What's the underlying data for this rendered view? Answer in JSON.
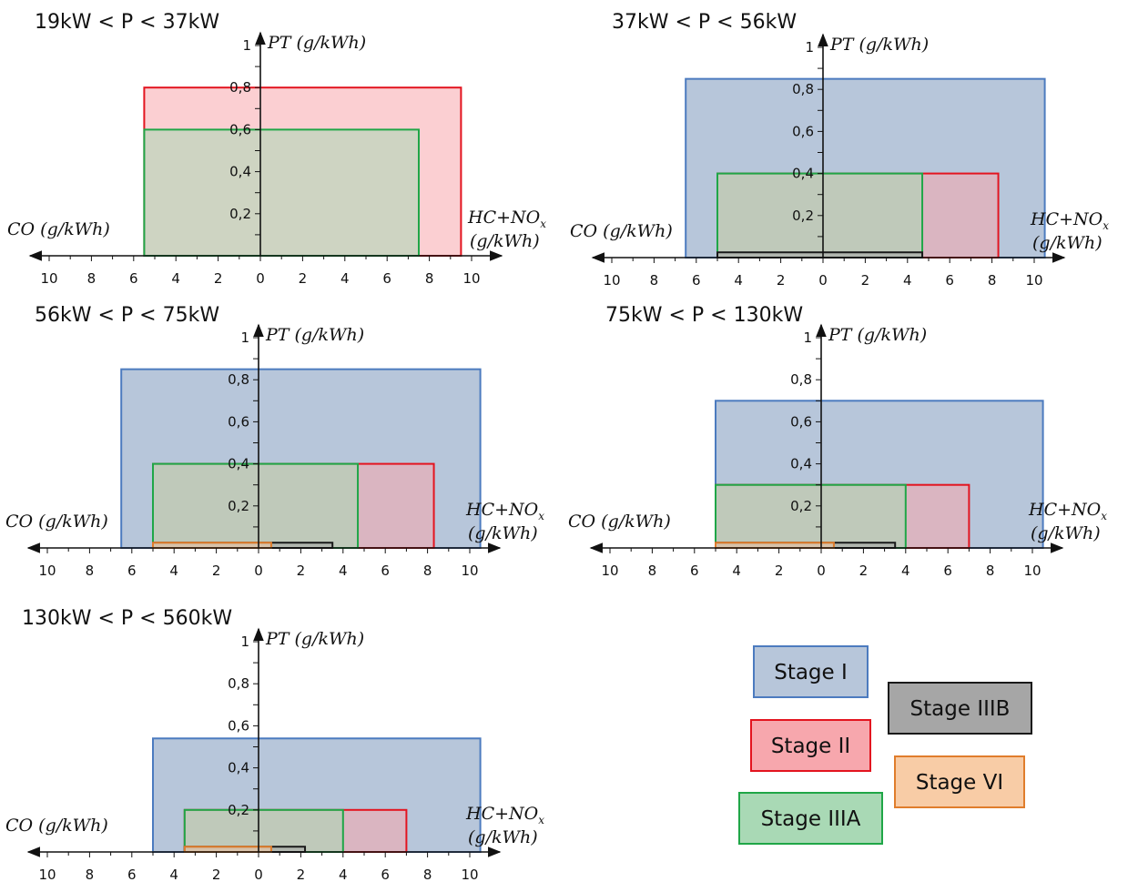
{
  "chart_data": {
    "type": "bar",
    "subtype": "emission-limit boxes",
    "x_axis": {
      "left_label": "CO (g/kWh)",
      "right_label_line1": "HC+NO",
      "right_label_sub": "x",
      "right_label_line2": "(g/kWh)",
      "ticks_left": [
        "10",
        "8",
        "6",
        "4",
        "2"
      ],
      "ticks_right": [
        "0",
        "2",
        "4",
        "6",
        "8",
        "10"
      ]
    },
    "y_axis": {
      "label": "PT (g/kWh)",
      "ticks": [
        "1",
        "0,8",
        "0,6",
        "0,4",
        "0,2"
      ],
      "range": [
        0,
        1
      ]
    },
    "legend_position": "bottom-right",
    "stages": [
      {
        "name": "Stage I",
        "fill": "#b7c6da",
        "stroke": "#4c7bbf"
      },
      {
        "name": "Stage II",
        "fill": "#f7a7ad",
        "stroke": "#e3141f"
      },
      {
        "name": "Stage IIIA",
        "fill": "#a9d9b5",
        "stroke": "#1fa647"
      },
      {
        "name": "Stage IIIB",
        "fill": "#a6a6a6",
        "stroke": "#1a1a1a"
      },
      {
        "name": "Stage VI",
        "fill": "#f8cca6",
        "stroke": "#e07d2c"
      }
    ],
    "panels": [
      {
        "title": "19kW < P < 37kW",
        "limits": [
          {
            "stage": "Stage II",
            "co": 5.5,
            "hc_nox": 9.5,
            "pt": 0.8
          },
          {
            "stage": "Stage IIIA",
            "co": 5.5,
            "hc_nox": 7.5,
            "pt": 0.6
          }
        ]
      },
      {
        "title": "37kW < P < 56kW",
        "limits": [
          {
            "stage": "Stage I",
            "co": 6.5,
            "hc_nox": 10.5,
            "pt": 0.85
          },
          {
            "stage": "Stage II",
            "co": 5.0,
            "hc_nox": 8.3,
            "pt": 0.4
          },
          {
            "stage": "Stage IIIA",
            "co": 5.0,
            "hc_nox": 4.7,
            "pt": 0.4
          },
          {
            "stage": "Stage IIIB",
            "co": 5.0,
            "hc_nox": 4.7,
            "pt": 0.025
          }
        ]
      },
      {
        "title": "56kW < P < 75kW",
        "limits": [
          {
            "stage": "Stage I",
            "co": 6.5,
            "hc_nox": 10.5,
            "pt": 0.85
          },
          {
            "stage": "Stage II",
            "co": 5.0,
            "hc_nox": 8.3,
            "pt": 0.4
          },
          {
            "stage": "Stage IIIA",
            "co": 5.0,
            "hc_nox": 4.7,
            "pt": 0.4
          },
          {
            "stage": "Stage IIIB",
            "co": 5.0,
            "hc_nox": 3.5,
            "pt": 0.025
          },
          {
            "stage": "Stage VI",
            "co": 5.0,
            "hc_nox": 0.6,
            "pt": 0.025
          }
        ]
      },
      {
        "title": "75kW < P < 130kW",
        "limits": [
          {
            "stage": "Stage I",
            "co": 5.0,
            "hc_nox": 10.5,
            "pt": 0.7
          },
          {
            "stage": "Stage II",
            "co": 5.0,
            "hc_nox": 7.0,
            "pt": 0.3
          },
          {
            "stage": "Stage IIIA",
            "co": 5.0,
            "hc_nox": 4.0,
            "pt": 0.3
          },
          {
            "stage": "Stage IIIB",
            "co": 5.0,
            "hc_nox": 3.5,
            "pt": 0.025
          },
          {
            "stage": "Stage VI",
            "co": 5.0,
            "hc_nox": 0.6,
            "pt": 0.025
          }
        ]
      },
      {
        "title": "130kW < P < 560kW",
        "limits": [
          {
            "stage": "Stage I",
            "co": 5.0,
            "hc_nox": 10.5,
            "pt": 0.54
          },
          {
            "stage": "Stage II",
            "co": 3.5,
            "hc_nox": 7.0,
            "pt": 0.2
          },
          {
            "stage": "Stage IIIA",
            "co": 3.5,
            "hc_nox": 4.0,
            "pt": 0.2
          },
          {
            "stage": "Stage IIIB",
            "co": 3.5,
            "hc_nox": 2.2,
            "pt": 0.025
          },
          {
            "stage": "Stage VI",
            "co": 3.5,
            "hc_nox": 0.6,
            "pt": 0.025
          }
        ]
      }
    ]
  }
}
